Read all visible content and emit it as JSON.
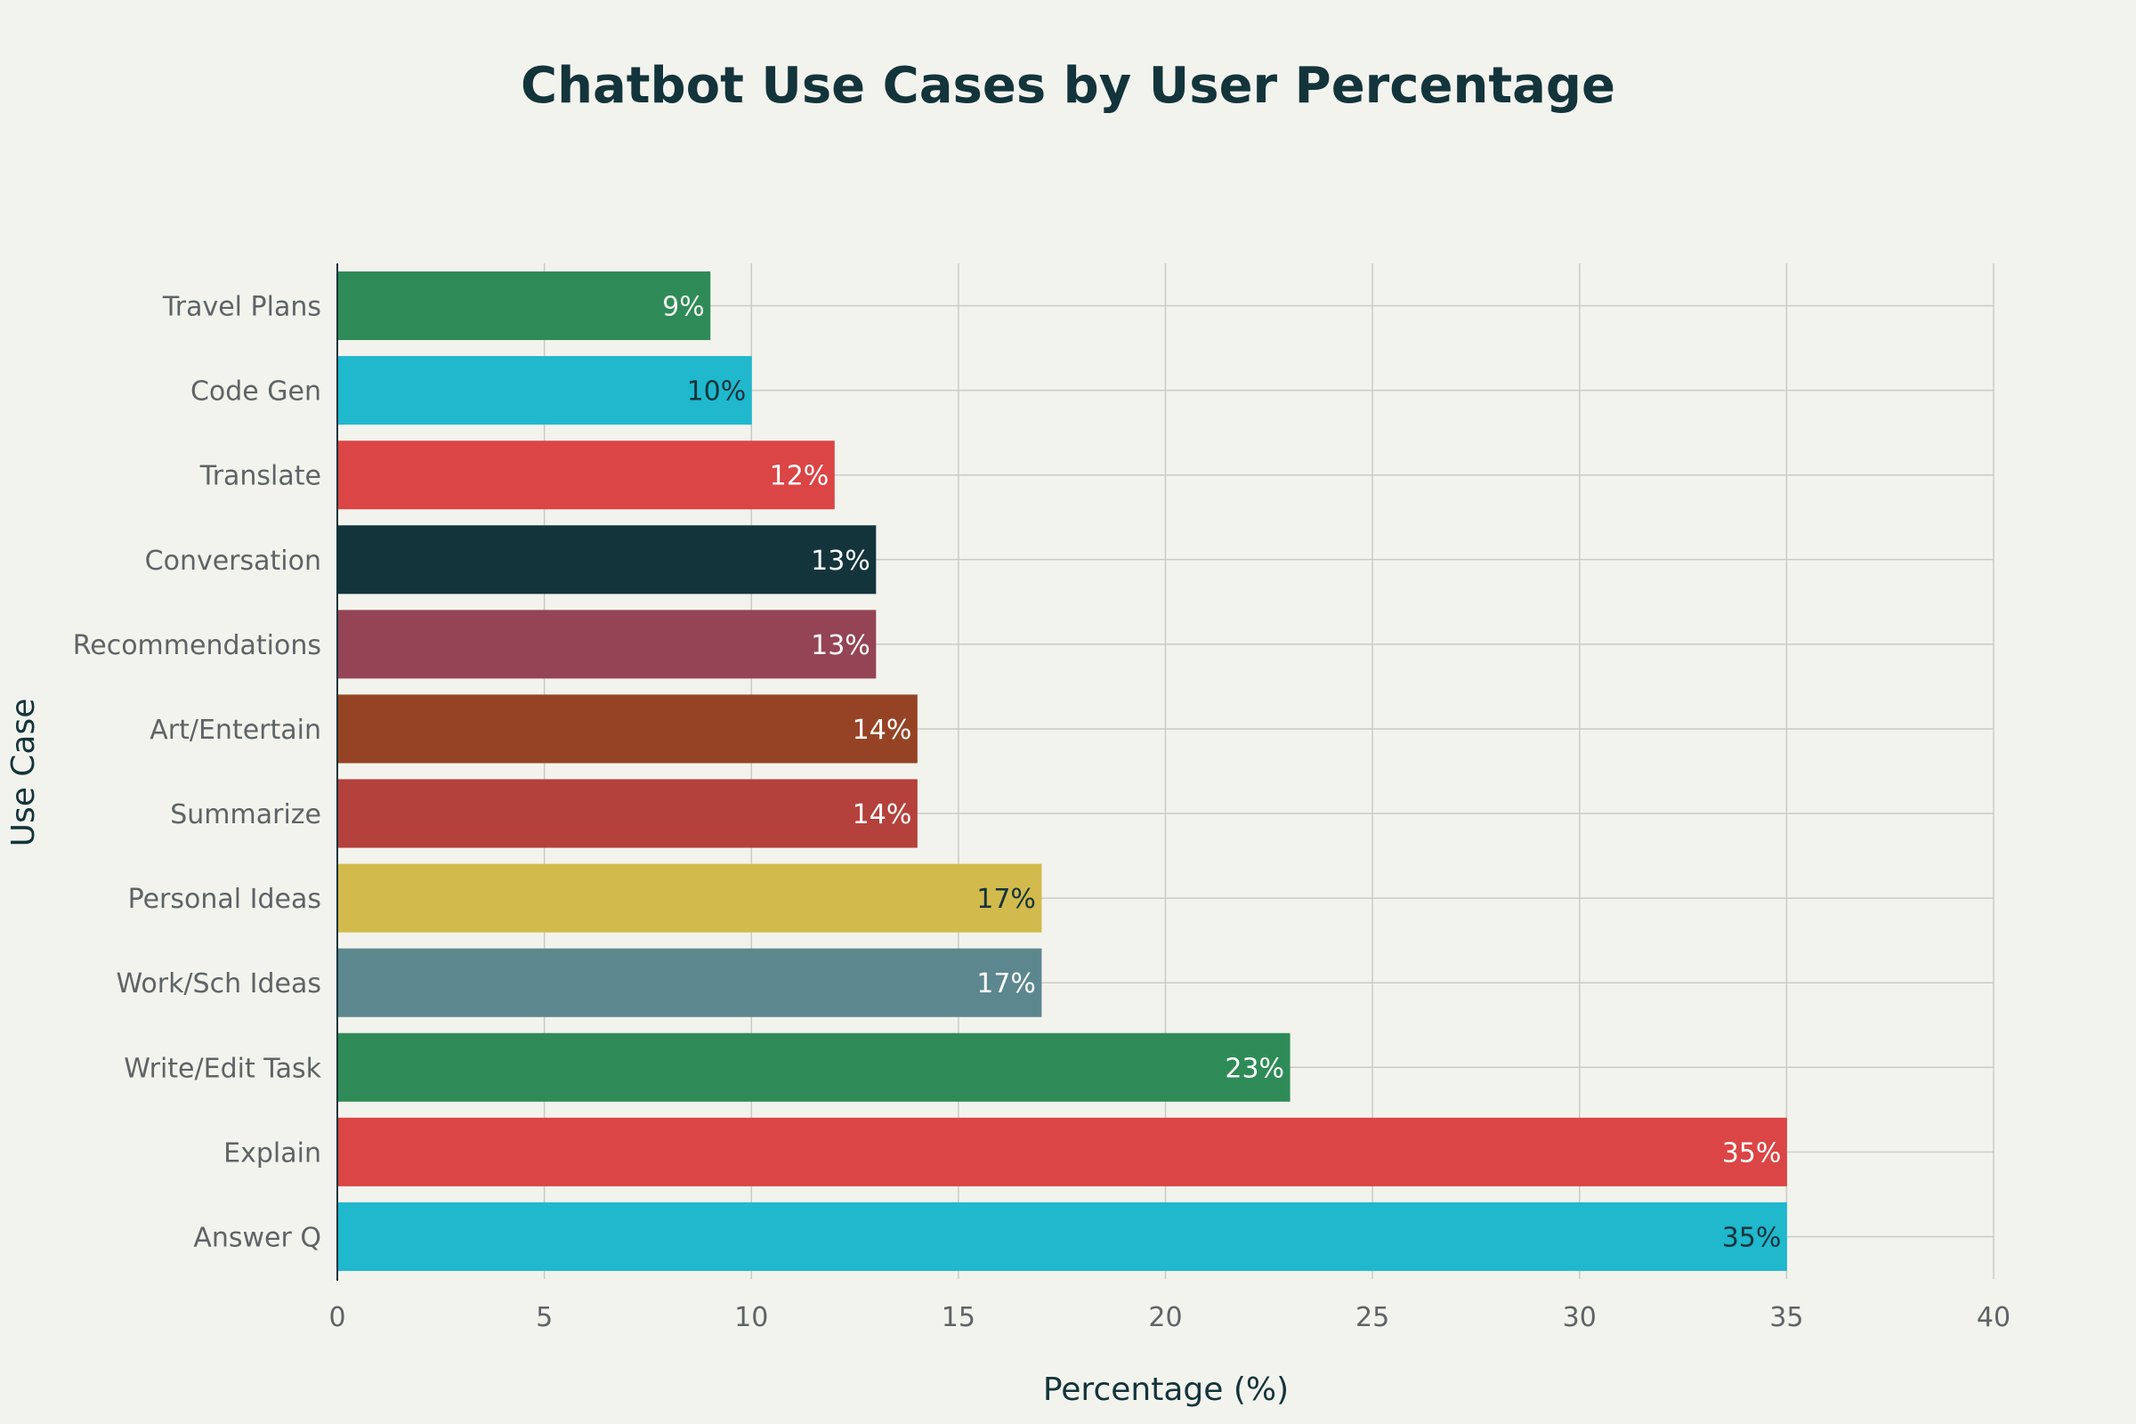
{
  "chart_data": {
    "type": "bar",
    "orientation": "horizontal",
    "title": "Chatbot Use Cases by User Percentage",
    "xlabel": "Percentage (%)",
    "ylabel": "Use Case",
    "xlim": [
      0,
      40
    ],
    "xticks": [
      0,
      5,
      10,
      15,
      20,
      25,
      30,
      35,
      40
    ],
    "grid": true,
    "categories": [
      "Travel Plans",
      "Code Gen",
      "Translate",
      "Conversation",
      "Recommendations",
      "Art/Entertain",
      "Summarize",
      "Personal Ideas",
      "Work/Sch Ideas",
      "Write/Edit Task",
      "Explain",
      "Answer Q"
    ],
    "values": [
      9,
      10,
      12,
      13,
      13,
      14,
      14,
      17,
      17,
      23,
      35,
      35
    ],
    "value_labels": [
      "9%",
      "10%",
      "12%",
      "13%",
      "13%",
      "14%",
      "14%",
      "17%",
      "17%",
      "23%",
      "35%",
      "35%"
    ],
    "colors": [
      "#2e8b57",
      "#1fb8cd",
      "#db4545",
      "#13343b",
      "#944454",
      "#964325",
      "#b4413c",
      "#d2ba4c",
      "#5d878f",
      "#2e8b57",
      "#db4545",
      "#1fb8cd"
    ],
    "label_colors": [
      "#f3f3ee",
      "#13343b",
      "#ffffff",
      "#ffffff",
      "#ffffff",
      "#ffffff",
      "#ffffff",
      "#13343b",
      "#ffffff",
      "#ffffff",
      "#ffffff",
      "#13343b"
    ]
  }
}
